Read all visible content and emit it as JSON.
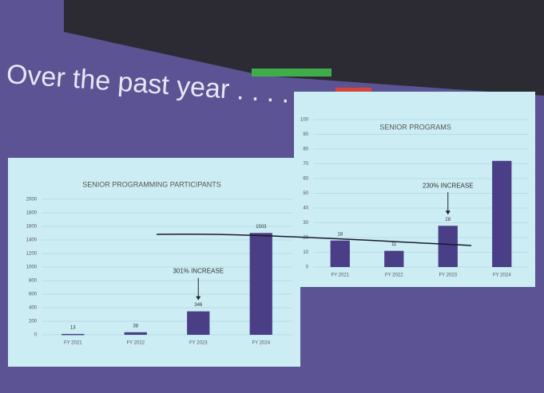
{
  "slide": {
    "title": "Over the past year . . . . ."
  },
  "chart_data": [
    {
      "type": "bar",
      "title": "SENIOR PROGRAMMING PARTICIPANTS",
      "categories": [
        "FY 2021",
        "FY 2022",
        "FY 2023",
        "FY 2024"
      ],
      "values": [
        13,
        38,
        346,
        1503
      ],
      "color": "#4a3f86",
      "ylim": [
        0,
        2000
      ],
      "yticks": [
        0,
        200,
        400,
        600,
        800,
        1000,
        1200,
        1400,
        1600,
        1800,
        2000
      ],
      "grid": true,
      "annotation": "301% INCREASE"
    },
    {
      "type": "bar",
      "title": "SENIOR PROGRAMS",
      "categories": [
        "FY 2021",
        "FY 2022",
        "FY 2023",
        "FY 2024"
      ],
      "values": [
        18,
        11,
        28,
        72
      ],
      "value_labels": [
        "18",
        "11",
        "28",
        null
      ],
      "color": "#4a3f86",
      "ylim": [
        0,
        100
      ],
      "yticks": [
        0,
        10,
        20,
        30,
        40,
        50,
        60,
        70,
        80,
        90,
        100
      ],
      "grid": true,
      "annotation": "230% INCREASE"
    }
  ]
}
